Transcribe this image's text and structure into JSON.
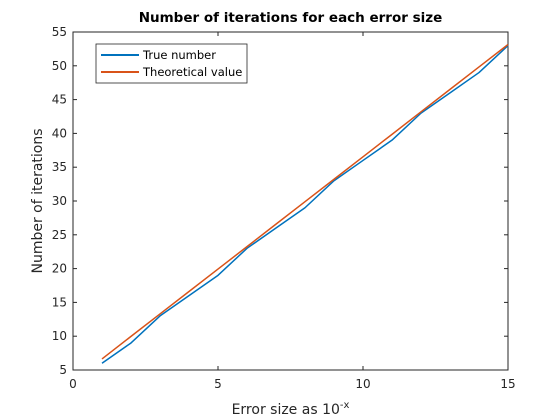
{
  "chart_data": {
    "type": "line",
    "title": "Number of iterations for each error size",
    "xlabel": "Error size as 10",
    "xlabel_superscript": "-x",
    "ylabel": "Number of iterations",
    "xlim": [
      0,
      15
    ],
    "ylim": [
      5,
      55
    ],
    "xticks": [
      0,
      5,
      10,
      15
    ],
    "yticks": [
      5,
      10,
      15,
      20,
      25,
      30,
      35,
      40,
      45,
      50,
      55
    ],
    "grid": false,
    "legend_position": "top-left",
    "series": [
      {
        "name": "True number",
        "color": "#0072BD",
        "x": [
          1,
          2,
          3,
          4,
          5,
          6,
          7,
          8,
          9,
          10,
          11,
          12,
          13,
          14,
          15
        ],
        "y": [
          6,
          9,
          13,
          16,
          19,
          23,
          26,
          29,
          33,
          36,
          39,
          43,
          46,
          49,
          53
        ]
      },
      {
        "name": "Theoretical value",
        "color": "#D95319",
        "x": [
          1,
          2,
          3,
          4,
          5,
          6,
          7,
          8,
          9,
          10,
          11,
          12,
          13,
          14,
          15
        ],
        "y": [
          6.64,
          9.97,
          13.29,
          16.61,
          19.93,
          23.25,
          26.58,
          29.9,
          33.22,
          36.54,
          39.86,
          43.19,
          46.51,
          49.83,
          53.15
        ]
      }
    ]
  }
}
